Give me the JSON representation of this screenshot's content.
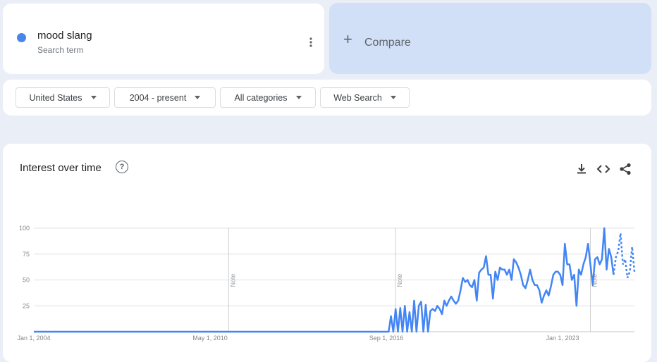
{
  "term": {
    "name": "mood slang",
    "subtitle": "Search term",
    "color": "#4a86e8"
  },
  "compare": {
    "label": "Compare"
  },
  "filters": [
    {
      "label": "United States"
    },
    {
      "label": "2004 - present"
    },
    {
      "label": "All categories"
    },
    {
      "label": "Web Search"
    }
  ],
  "chart_title": "Interest over time",
  "icons": [
    "more-vert-icon",
    "add-icon",
    "caret-down-icon",
    "help-icon",
    "download-icon",
    "embed-icon",
    "share-icon"
  ],
  "chart_data": {
    "type": "line",
    "xlabel": "",
    "ylabel": "",
    "ylim": [
      0,
      100
    ],
    "yticks": [
      25,
      50,
      75,
      100
    ],
    "grid": true,
    "series_color": "#4285f4",
    "x_ticks": [
      "Jan 1, 2004",
      "May 1, 2010",
      "Sep 1, 2016",
      "Jan 1, 2023"
    ],
    "notes": [
      {
        "date": "2011-01",
        "label": "Note"
      },
      {
        "date": "2017-01",
        "label": "Note"
      },
      {
        "date": "2024-01",
        "label": "Note"
      }
    ],
    "partial_from": "2024-11",
    "series": [
      {
        "name": "mood slang",
        "points": [
          [
            "2004-01",
            0
          ],
          [
            "2016-09",
            0
          ],
          [
            "2016-10",
            0
          ],
          [
            "2016-11",
            15
          ],
          [
            "2016-12",
            0
          ],
          [
            "2017-01",
            22
          ],
          [
            "2017-02",
            0
          ],
          [
            "2017-03",
            23
          ],
          [
            "2017-04",
            0
          ],
          [
            "2017-05",
            25
          ],
          [
            "2017-06",
            0
          ],
          [
            "2017-07",
            19
          ],
          [
            "2017-08",
            0
          ],
          [
            "2017-09",
            30
          ],
          [
            "2017-10",
            0
          ],
          [
            "2017-11",
            25
          ],
          [
            "2017-12",
            29
          ],
          [
            "2018-01",
            0
          ],
          [
            "2018-02",
            26
          ],
          [
            "2018-03",
            0
          ],
          [
            "2018-04",
            20
          ],
          [
            "2018-05",
            22
          ],
          [
            "2018-06",
            20
          ],
          [
            "2018-07",
            25
          ],
          [
            "2018-08",
            22
          ],
          [
            "2018-09",
            17
          ],
          [
            "2018-10",
            30
          ],
          [
            "2018-11",
            25
          ],
          [
            "2018-12",
            30
          ],
          [
            "2019-01",
            34
          ],
          [
            "2019-02",
            30
          ],
          [
            "2019-03",
            27
          ],
          [
            "2019-04",
            30
          ],
          [
            "2019-05",
            40
          ],
          [
            "2019-06",
            52
          ],
          [
            "2019-07",
            48
          ],
          [
            "2019-08",
            50
          ],
          [
            "2019-09",
            45
          ],
          [
            "2019-10",
            43
          ],
          [
            "2019-11",
            50
          ],
          [
            "2019-12",
            30
          ],
          [
            "2020-01",
            57
          ],
          [
            "2020-02",
            60
          ],
          [
            "2020-03",
            62
          ],
          [
            "2020-04",
            73
          ],
          [
            "2020-05",
            55
          ],
          [
            "2020-06",
            55
          ],
          [
            "2020-07",
            32
          ],
          [
            "2020-08",
            58
          ],
          [
            "2020-09",
            50
          ],
          [
            "2020-10",
            62
          ],
          [
            "2020-11",
            60
          ],
          [
            "2020-12",
            60
          ],
          [
            "2021-01",
            55
          ],
          [
            "2021-02",
            60
          ],
          [
            "2021-03",
            50
          ],
          [
            "2021-04",
            70
          ],
          [
            "2021-05",
            67
          ],
          [
            "2021-06",
            62
          ],
          [
            "2021-07",
            55
          ],
          [
            "2021-08",
            45
          ],
          [
            "2021-09",
            42
          ],
          [
            "2021-10",
            50
          ],
          [
            "2021-11",
            60
          ],
          [
            "2021-12",
            50
          ],
          [
            "2022-01",
            45
          ],
          [
            "2022-02",
            45
          ],
          [
            "2022-03",
            40
          ],
          [
            "2022-04",
            28
          ],
          [
            "2022-05",
            35
          ],
          [
            "2022-06",
            40
          ],
          [
            "2022-07",
            35
          ],
          [
            "2022-08",
            44
          ],
          [
            "2022-09",
            55
          ],
          [
            "2022-10",
            58
          ],
          [
            "2022-11",
            58
          ],
          [
            "2022-12",
            55
          ],
          [
            "2023-01",
            45
          ],
          [
            "2023-02",
            85
          ],
          [
            "2023-03",
            65
          ],
          [
            "2023-04",
            65
          ],
          [
            "2023-05",
            50
          ],
          [
            "2023-06",
            55
          ],
          [
            "2023-07",
            25
          ],
          [
            "2023-08",
            60
          ],
          [
            "2023-09",
            55
          ],
          [
            "2023-10",
            65
          ],
          [
            "2023-11",
            72
          ],
          [
            "2023-12",
            85
          ],
          [
            "2024-01",
            65
          ],
          [
            "2024-02",
            45
          ],
          [
            "2024-03",
            70
          ],
          [
            "2024-04",
            72
          ],
          [
            "2024-05",
            65
          ],
          [
            "2024-06",
            70
          ],
          [
            "2024-07",
            100
          ],
          [
            "2024-08",
            60
          ],
          [
            "2024-09",
            80
          ],
          [
            "2024-10",
            72
          ],
          [
            "2024-11",
            55
          ],
          [
            "2024-12",
            72
          ],
          [
            "2025-01",
            78
          ],
          [
            "2025-02",
            95
          ],
          [
            "2025-03",
            65
          ],
          [
            "2025-04",
            70
          ],
          [
            "2025-05",
            52
          ],
          [
            "2025-06",
            58
          ],
          [
            "2025-07",
            82
          ],
          [
            "2025-08",
            58
          ]
        ]
      }
    ]
  }
}
